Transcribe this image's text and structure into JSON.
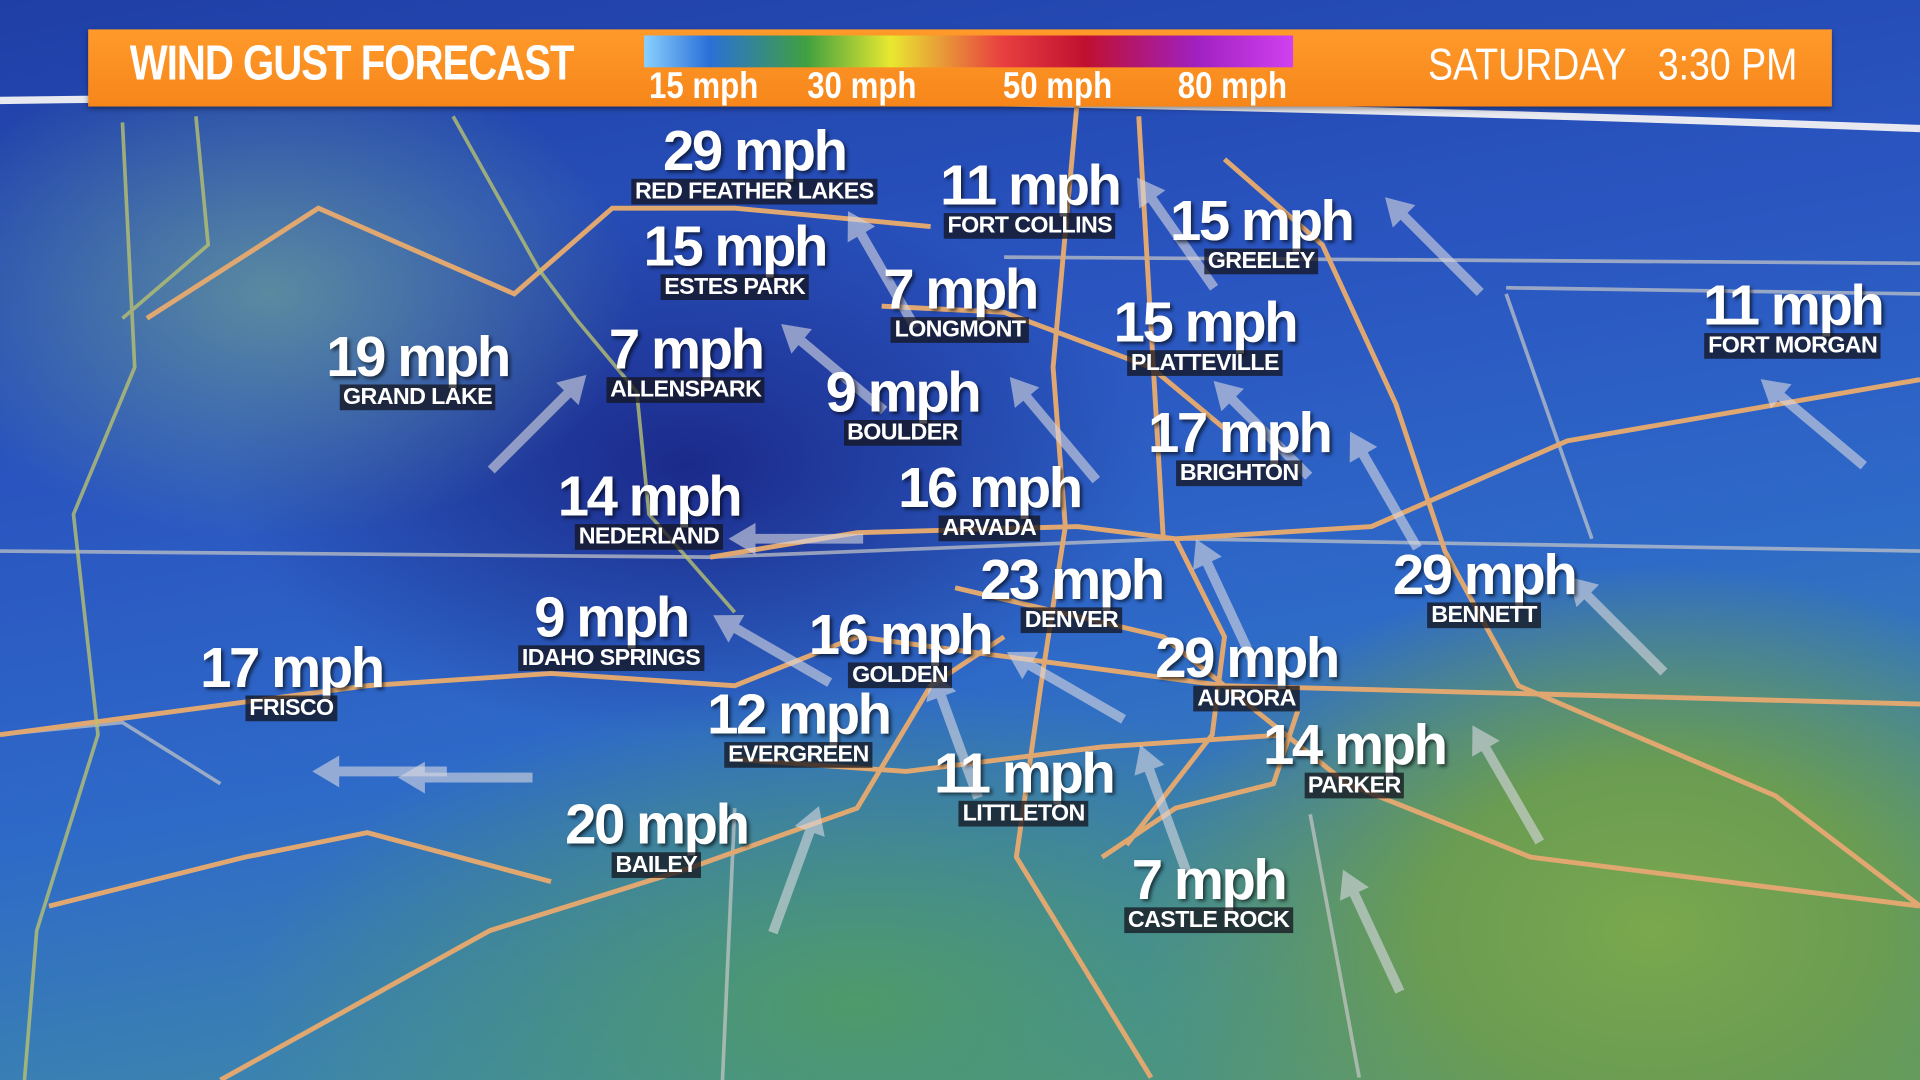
{
  "header": {
    "title": "WIND GUST FORECAST",
    "scale_labels": [
      "15 mph",
      "30 mph",
      "50 mph",
      "80 mph"
    ],
    "day": "SATURDAY",
    "time": "3:30 PM",
    "bar_color": "#f7861a"
  },
  "locations": [
    {
      "speed": "29 mph",
      "city": "RED FEATHER LAKES"
    },
    {
      "speed": "11 mph",
      "city": "FORT COLLINS"
    },
    {
      "speed": "15 mph",
      "city": "GREELEY"
    },
    {
      "speed": "15 mph",
      "city": "ESTES PARK"
    },
    {
      "speed": "7 mph",
      "city": "LONGMONT"
    },
    {
      "speed": "15 mph",
      "city": "PLATTEVILLE"
    },
    {
      "speed": "11 mph",
      "city": "FORT MORGAN"
    },
    {
      "speed": "19 mph",
      "city": "GRAND LAKE"
    },
    {
      "speed": "7 mph",
      "city": "ALLENSPARK"
    },
    {
      "speed": "9 mph",
      "city": "BOULDER"
    },
    {
      "speed": "17 mph",
      "city": "BRIGHTON"
    },
    {
      "speed": "14 mph",
      "city": "NEDERLAND"
    },
    {
      "speed": "16 mph",
      "city": "ARVADA"
    },
    {
      "speed": "23 mph",
      "city": "DENVER"
    },
    {
      "speed": "29 mph",
      "city": "BENNETT"
    },
    {
      "speed": "9 mph",
      "city": "IDAHO SPRINGS"
    },
    {
      "speed": "16 mph",
      "city": "GOLDEN"
    },
    {
      "speed": "29 mph",
      "city": "AURORA"
    },
    {
      "speed": "17 mph",
      "city": "FRISCO"
    },
    {
      "speed": "12 mph",
      "city": "EVERGREEN"
    },
    {
      "speed": "14 mph",
      "city": "PARKER"
    },
    {
      "speed": "11 mph",
      "city": "LITTLETON"
    },
    {
      "speed": "20 mph",
      "city": "BAILEY"
    },
    {
      "speed": "7 mph",
      "city": "CASTLE ROCK"
    }
  ],
  "wind_arrow_direction": "northwest"
}
